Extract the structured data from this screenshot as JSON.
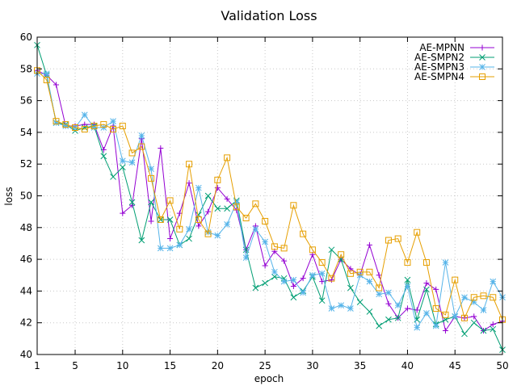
{
  "chart_data": {
    "type": "line",
    "title": "Validation Loss",
    "xlabel": "epoch",
    "ylabel": "loss",
    "xlim": [
      1,
      50
    ],
    "ylim": [
      40,
      60
    ],
    "xticks": [
      1,
      5,
      10,
      15,
      20,
      25,
      30,
      35,
      40,
      45,
      50
    ],
    "yticks": [
      40,
      42,
      44,
      46,
      48,
      50,
      52,
      54,
      56,
      58,
      60
    ],
    "grid": true,
    "legend_position": "top-right",
    "x": [
      1,
      2,
      3,
      4,
      5,
      6,
      7,
      8,
      9,
      10,
      11,
      12,
      13,
      14,
      15,
      16,
      17,
      18,
      19,
      20,
      21,
      22,
      23,
      24,
      25,
      26,
      27,
      28,
      29,
      30,
      31,
      32,
      33,
      34,
      35,
      36,
      37,
      38,
      39,
      40,
      41,
      42,
      43,
      44,
      45,
      46,
      47,
      48,
      49,
      50
    ],
    "series": [
      {
        "name": "AE-MPNN",
        "color": "#9400d3",
        "marker": "plus",
        "values": [
          57.9,
          57.6,
          57.0,
          54.4,
          54.4,
          54.5,
          54.5,
          52.9,
          54.4,
          48.9,
          49.4,
          53.6,
          48.4,
          53.0,
          47.3,
          48.9,
          50.8,
          48.1,
          49.0,
          50.5,
          49.8,
          49.1,
          46.6,
          48.1,
          45.6,
          46.5,
          45.9,
          44.3,
          44.8,
          46.3,
          44.6,
          44.7,
          46.0,
          45.4,
          45.0,
          46.9,
          45.0,
          43.2,
          42.3,
          42.9,
          42.8,
          44.5,
          44.1,
          41.5,
          42.4,
          42.3,
          42.4,
          41.5,
          41.9,
          42.1
        ]
      },
      {
        "name": "AE-SMPN2",
        "color": "#009e73",
        "marker": "cross",
        "values": [
          59.5,
          57.6,
          54.6,
          54.5,
          54.1,
          54.3,
          54.4,
          52.5,
          51.2,
          51.8,
          49.6,
          47.2,
          49.6,
          48.5,
          48.5,
          46.9,
          47.3,
          48.8,
          50.0,
          49.2,
          49.2,
          49.7,
          46.6,
          44.2,
          44.5,
          44.9,
          44.8,
          43.6,
          44.0,
          44.9,
          43.4,
          46.6,
          46.0,
          44.2,
          43.3,
          42.7,
          41.8,
          42.2,
          42.3,
          44.7,
          42.2,
          44.1,
          41.9,
          42.2,
          42.4,
          41.3,
          42.0,
          41.5,
          41.6,
          40.3
        ]
      },
      {
        "name": "AE-SMPN3",
        "color": "#56b4e9",
        "marker": "star",
        "values": [
          57.7,
          57.7,
          54.6,
          54.4,
          54.3,
          55.1,
          54.3,
          54.3,
          54.7,
          52.2,
          52.1,
          53.8,
          51.7,
          46.7,
          46.7,
          46.9,
          47.9,
          50.5,
          47.7,
          47.5,
          48.2,
          49.6,
          46.1,
          47.9,
          47.1,
          45.2,
          44.6,
          44.7,
          43.9,
          45.0,
          45.1,
          42.9,
          43.1,
          42.9,
          45.0,
          44.6,
          43.8,
          43.9,
          43.1,
          44.3,
          41.7,
          42.6,
          41.8,
          45.8,
          42.4,
          43.6,
          43.3,
          42.8,
          44.6,
          43.6
        ]
      },
      {
        "name": "AE-SMPN4",
        "color": "#e69f00",
        "marker": "square",
        "values": [
          57.9,
          57.3,
          54.7,
          54.5,
          54.3,
          54.2,
          54.4,
          54.5,
          54.2,
          54.4,
          52.7,
          53.1,
          51.1,
          48.5,
          49.7,
          47.9,
          52.0,
          48.5,
          47.6,
          51.0,
          52.4,
          49.3,
          48.6,
          49.5,
          48.4,
          46.8,
          46.7,
          49.4,
          47.6,
          46.6,
          45.8,
          44.8,
          46.3,
          45.1,
          45.2,
          45.2,
          44.2,
          47.2,
          47.3,
          45.8,
          47.7,
          45.8,
          42.9,
          42.5,
          44.7,
          42.3,
          43.6,
          43.7,
          43.6,
          42.2
        ]
      }
    ]
  }
}
